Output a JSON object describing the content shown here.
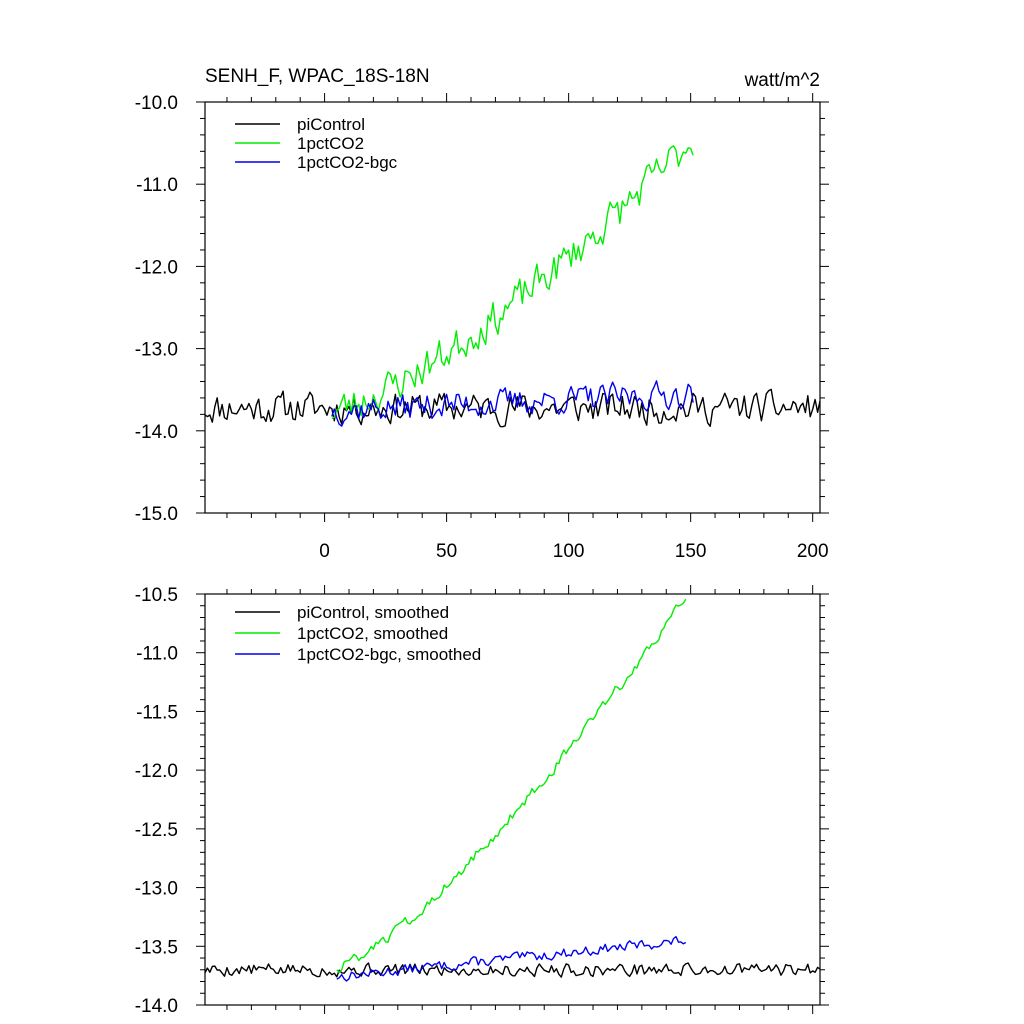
{
  "chart_data": [
    {
      "type": "line",
      "title_left": "SENH_F, WPAC_18S-18N",
      "title_right": "watt/m^2",
      "xlim": [
        -49,
        203
      ],
      "ylim": [
        -15.0,
        -10.0
      ],
      "yticks": [
        -10.0,
        -11.0,
        -12.0,
        -13.0,
        -14.0,
        -15.0
      ],
      "ytick_labels": [
        "-10.0",
        "-11.0",
        "-12.0",
        "-13.0",
        "-14.0",
        "-15.0"
      ],
      "xticks": [
        0,
        50,
        100,
        150,
        200
      ],
      "xtick_labels": [
        "0",
        "50",
        "100",
        "150",
        "200"
      ],
      "series": [
        {
          "name": "piControl",
          "color": "#000000",
          "x_start": -49,
          "x_end": 203,
          "trend_start": -13.72,
          "trend_end": -13.72,
          "noise": 0.17,
          "seed": 11
        },
        {
          "name": "1pctCO2",
          "color": "#00ee00",
          "x_start": 3,
          "x_end": 151,
          "trend_start": -13.75,
          "trend_end": -10.45,
          "curve": 1.35,
          "noise": 0.2,
          "seed": 23
        },
        {
          "name": "1pctCO2-bgc",
          "color": "#0000ee",
          "x_start": 3,
          "x_end": 151,
          "trend_start": -13.75,
          "trend_end": -13.55,
          "noise": 0.15,
          "seed": 37
        }
      ]
    },
    {
      "type": "line",
      "xlim": [
        -49,
        203
      ],
      "ylim": [
        -14.0,
        -10.5
      ],
      "yticks": [
        -10.5,
        -11.0,
        -11.5,
        -12.0,
        -12.5,
        -13.0,
        -13.5,
        -14.0
      ],
      "ytick_labels": [
        "-10.5",
        "-11.0",
        "-11.5",
        "-12.0",
        "-12.5",
        "-13.0",
        "-13.5",
        "-14.0"
      ],
      "xticks": [
        0,
        50,
        100,
        150,
        200
      ],
      "series": [
        {
          "name": "piControl, smoothed",
          "color": "#000000",
          "x_start": -49,
          "x_end": 203,
          "trend_start": -13.7,
          "trend_end": -13.7,
          "noise": 0.05,
          "seed": 5
        },
        {
          "name": "1pctCO2, smoothed",
          "color": "#00ee00",
          "x_start": 5,
          "x_end": 148,
          "trend_start": -13.68,
          "trend_end": -10.53,
          "curve": 1.3,
          "noise": 0.04,
          "seed": 8
        },
        {
          "name": "1pctCO2-bgc, smoothed",
          "color": "#0000ee",
          "x_start": 5,
          "x_end": 148,
          "trend_start": -13.76,
          "trend_end": -13.45,
          "noise": 0.04,
          "seed": 13
        }
      ]
    }
  ]
}
